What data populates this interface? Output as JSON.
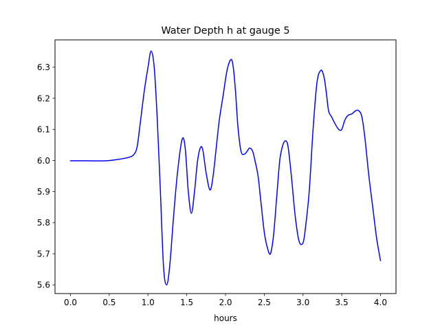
{
  "chart_data": {
    "type": "line",
    "title": "Water Depth h at gauge 5",
    "xlabel": "hours",
    "ylabel": "",
    "xlim": [
      -0.2,
      4.2
    ],
    "ylim": [
      5.572,
      6.388
    ],
    "xticks": [
      0.0,
      0.5,
      1.0,
      1.5,
      2.0,
      2.5,
      3.0,
      3.5,
      4.0
    ],
    "xtick_labels": [
      "0.0",
      "0.5",
      "1.0",
      "1.5",
      "2.0",
      "2.5",
      "3.0",
      "3.5",
      "4.0"
    ],
    "yticks": [
      5.6,
      5.7,
      5.8,
      5.9,
      6.0,
      6.1,
      6.2,
      6.3
    ],
    "ytick_labels": [
      "5.6",
      "5.7",
      "5.8",
      "5.9",
      "6.0",
      "6.1",
      "6.2",
      "6.3"
    ],
    "grid": false,
    "series": [
      {
        "name": "h",
        "color": "#0000ff",
        "x": [
          0.0,
          0.2,
          0.45,
          0.6,
          0.75,
          0.82,
          0.86,
          0.9,
          0.95,
          1.0,
          1.04,
          1.08,
          1.12,
          1.16,
          1.2,
          1.24,
          1.28,
          1.33,
          1.38,
          1.44,
          1.48,
          1.52,
          1.56,
          1.6,
          1.64,
          1.68,
          1.71,
          1.75,
          1.8,
          1.84,
          1.88,
          1.92,
          1.97,
          2.02,
          2.07,
          2.1,
          2.13,
          2.16,
          2.2,
          2.24,
          2.28,
          2.31,
          2.35,
          2.38,
          2.42,
          2.46,
          2.5,
          2.54,
          2.58,
          2.62,
          2.66,
          2.7,
          2.74,
          2.78,
          2.81,
          2.85,
          2.9,
          2.95,
          3.0,
          3.03,
          3.08,
          3.13,
          3.18,
          3.23,
          3.27,
          3.3,
          3.33,
          3.37,
          3.41,
          3.46,
          3.5,
          3.54,
          3.58,
          3.63,
          3.68,
          3.72,
          3.76,
          3.8,
          3.85,
          3.9,
          3.95,
          4.0
        ],
        "y": [
          5.999,
          5.999,
          5.999,
          6.003,
          6.01,
          6.02,
          6.045,
          6.12,
          6.22,
          6.3,
          6.352,
          6.3,
          6.13,
          5.9,
          5.66,
          5.6,
          5.66,
          5.82,
          5.96,
          6.068,
          6.04,
          5.9,
          5.83,
          5.9,
          6.0,
          6.043,
          6.03,
          5.96,
          5.905,
          5.95,
          6.04,
          6.13,
          6.21,
          6.29,
          6.325,
          6.3,
          6.22,
          6.11,
          6.03,
          6.02,
          6.03,
          6.04,
          6.03,
          6.0,
          5.95,
          5.86,
          5.77,
          5.72,
          5.7,
          5.76,
          5.88,
          6.0,
          6.05,
          6.063,
          6.04,
          5.95,
          5.82,
          5.74,
          5.735,
          5.78,
          5.9,
          6.1,
          6.25,
          6.29,
          6.27,
          6.22,
          6.16,
          6.14,
          6.12,
          6.1,
          6.1,
          6.13,
          6.145,
          6.15,
          6.16,
          6.16,
          6.14,
          6.07,
          5.95,
          5.85,
          5.75,
          5.678
        ]
      }
    ]
  }
}
